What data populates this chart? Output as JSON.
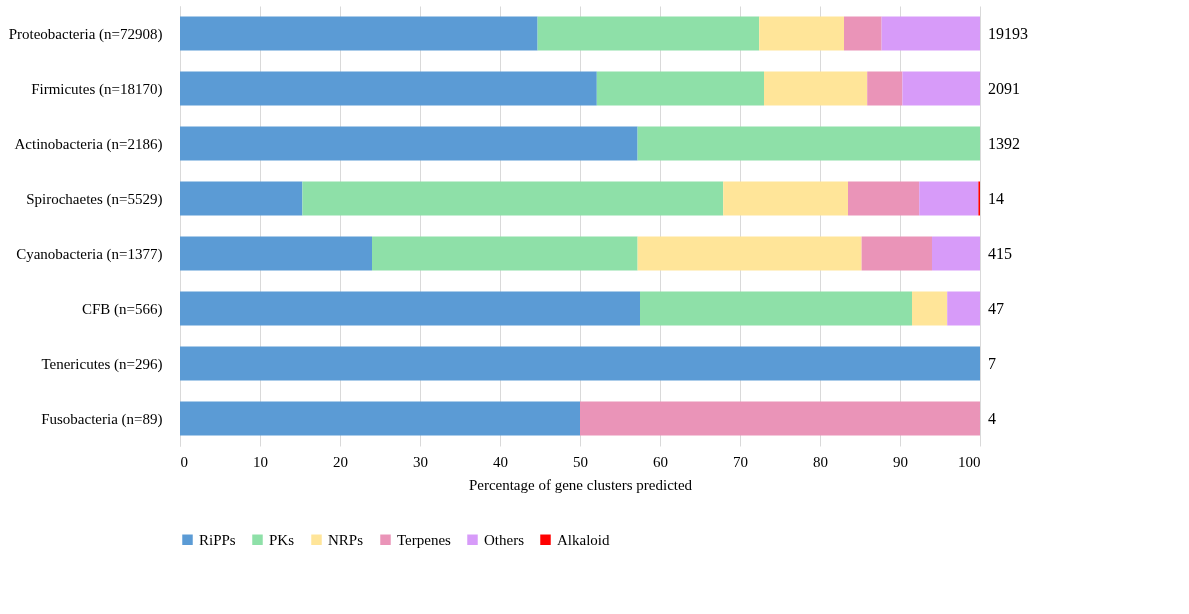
{
  "chart_data": {
    "type": "bar",
    "orientation": "horizontal",
    "stacked": true,
    "xlabel": "Percentage of gene clusters predicted",
    "categories": [
      "Proteobacteria (n=72908)",
      "Firmicutes (n=18170)",
      "Actinobacteria (n=2186)",
      "Spirochaetes (n=5529)",
      "Cyanobacteria (n=1377)",
      "CFB (n=566)",
      "Tenericutes (n=296)",
      "Fusobacteria (n=89)"
    ],
    "series": [
      {
        "name": "RiPPs",
        "color": "#5b9bd5",
        "values": [
          44.7,
          52.1,
          57.2,
          15.3,
          24.0,
          57.5,
          100,
          50
        ]
      },
      {
        "name": "PKs",
        "color": "#8ee0a8",
        "values": [
          27.7,
          20.9,
          42.8,
          52.6,
          33.2,
          34.0,
          null,
          null
        ]
      },
      {
        "name": "NRPs",
        "color": "#ffe599",
        "values": [
          10.6,
          12.9,
          null,
          15.6,
          28.0,
          4.4,
          null,
          null
        ]
      },
      {
        "name": "Terpenes",
        "color": "#ea94b8",
        "values": [
          4.7,
          4.4,
          null,
          8.9,
          8.8,
          null,
          null,
          50
        ]
      },
      {
        "name": "Others",
        "color": "#d79bf9",
        "values": [
          12.3,
          9.7,
          null,
          7.4,
          6.0,
          4.1,
          null,
          null
        ]
      },
      {
        "name": "Alkaloid",
        "color": "#ff0000",
        "values": [
          null,
          null,
          null,
          0.2,
          null,
          null,
          null,
          null
        ]
      }
    ],
    "annotations": [
      "19193",
      "2091",
      "1392",
      "14",
      "415",
      "47",
      "7",
      "4"
    ],
    "xlim": [
      0,
      100
    ],
    "xticks": [
      0,
      10,
      20,
      30,
      40,
      50,
      60,
      70,
      80,
      90,
      100
    ],
    "grid": "x",
    "legend": "bottom"
  }
}
